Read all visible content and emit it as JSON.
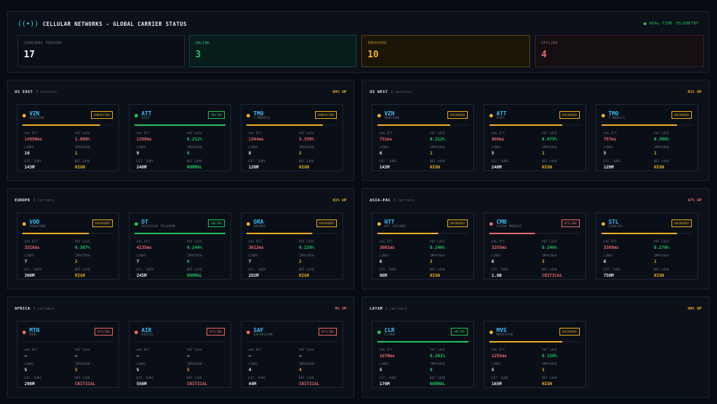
{
  "header": {
    "title": "CELLULAR NETWORKS - GLOBAL CARRIER STATUS",
    "title_icon": "antenna-icon",
    "live_label": "REAL-TIME TELEMETRY",
    "stats": [
      {
        "label": "CARRIERS TRACKED",
        "value": "17",
        "kind": "neutral"
      },
      {
        "label": "ONLINE",
        "value": "3",
        "kind": "online"
      },
      {
        "label": "IMPAIRED",
        "value": "10",
        "kind": "impaired"
      },
      {
        "label": "OFFLINE",
        "value": "4",
        "kind": "offline"
      }
    ]
  },
  "colors": {
    "online": "#22c55e",
    "degraded": "#f5b021",
    "congested": "#f5b021",
    "offline": "#f06a6a"
  },
  "labels": {
    "avg_rtt": "AVG RTT",
    "pkt_loss": "PKT LOSS",
    "links": "LINKS",
    "impaired": "IMPAIRED",
    "est_subs": "EST. SUBS",
    "net_load": "NET LOAD"
  },
  "regions": [
    {
      "name": "US EAST",
      "count": "3 carriers",
      "up": "89% UP",
      "up_color": "amber",
      "carriers": [
        {
          "code": "VZN",
          "full": "VERIZON",
          "status": "CONGESTED",
          "state": "congested",
          "bar": 0.85,
          "rtt": "14990ms",
          "rtt_c": "red",
          "loss": "1.080%",
          "loss_c": "red",
          "links": "10",
          "impaired": "1",
          "imp_c": "amber",
          "subs": "143M",
          "load": "HIGH",
          "load_c": "amber"
        },
        {
          "code": "ATT",
          "full": "AT&T",
          "status": "ONLINE",
          "state": "online",
          "bar": 1.0,
          "rtt": "1398ms",
          "rtt_c": "red",
          "loss": "0.212%",
          "loss_c": "green",
          "links": "9",
          "impaired": "0",
          "imp_c": "green",
          "subs": "240M",
          "load": "NORMAL",
          "load_c": "green"
        },
        {
          "code": "TMO",
          "full": "T-MOBILE",
          "status": "CONGESTED",
          "state": "congested",
          "bar": 0.84,
          "rtt": "1344ms",
          "rtt_c": "red",
          "loss": "3.358%",
          "loss_c": "red",
          "links": "8",
          "impaired": "2",
          "imp_c": "amber",
          "subs": "120M",
          "load": "HIGH",
          "load_c": "amber"
        }
      ]
    },
    {
      "name": "US WEST",
      "count": "3 carriers",
      "up": "81% UP",
      "up_color": "amber",
      "carriers": [
        {
          "code": "VZN",
          "full": "VERIZON",
          "status": "DEGRADED",
          "state": "degraded",
          "bar": 0.8,
          "rtt": "731ms",
          "rtt_c": "red",
          "loss": "0.212%",
          "loss_c": "green",
          "links": "6",
          "impaired": "1",
          "imp_c": "amber",
          "subs": "143M",
          "load": "HIGH",
          "load_c": "amber"
        },
        {
          "code": "ATT",
          "full": "AT&T",
          "status": "DEGRADED",
          "state": "degraded",
          "bar": 0.8,
          "rtt": "868ms",
          "rtt_c": "red",
          "loss": "0.075%",
          "loss_c": "green",
          "links": "5",
          "impaired": "1",
          "imp_c": "amber",
          "subs": "240M",
          "load": "HIGH",
          "load_c": "amber"
        },
        {
          "code": "TMO",
          "full": "T-MOBILE",
          "status": "DEGRADED",
          "state": "degraded",
          "bar": 0.83,
          "rtt": "797ms",
          "rtt_c": "red",
          "loss": "0.306%",
          "loss_c": "green",
          "links": "5",
          "impaired": "1",
          "imp_c": "amber",
          "subs": "120M",
          "load": "HIGH",
          "load_c": "amber"
        }
      ]
    },
    {
      "name": "EUROPE",
      "count": "3 carriers",
      "up": "81% UP",
      "up_color": "amber",
      "carriers": [
        {
          "code": "VOD",
          "full": "VODAFONE",
          "status": "DEGRADED",
          "state": "degraded",
          "bar": 0.73,
          "rtt": "3316ms",
          "rtt_c": "red",
          "loss": "0.307%",
          "loss_c": "green",
          "links": "7",
          "impaired": "2",
          "imp_c": "amber",
          "subs": "300M",
          "load": "HIGH",
          "load_c": "amber"
        },
        {
          "code": "DT",
          "full": "DEUTSCHE TELEKOM",
          "status": "ONLINE",
          "state": "online",
          "bar": 1.0,
          "rtt": "4135ms",
          "rtt_c": "red",
          "loss": "0.244%",
          "loss_c": "green",
          "links": "7",
          "impaired": "0",
          "imp_c": "green",
          "subs": "245M",
          "load": "NORMAL",
          "load_c": "green"
        },
        {
          "code": "ORA",
          "full": "ORANGE",
          "status": "DEGRADED",
          "state": "degraded",
          "bar": 0.72,
          "rtt": "3612ms",
          "rtt_c": "red",
          "loss": "0.220%",
          "loss_c": "green",
          "links": "7",
          "impaired": "2",
          "imp_c": "amber",
          "subs": "292M",
          "load": "HIGH",
          "load_c": "amber"
        }
      ]
    },
    {
      "name": "ASIA-PAC",
      "count": "3 carriers",
      "up": "67% UP",
      "up_color": "red",
      "carriers": [
        {
          "code": "NTT",
          "full": "NTT DOCOMO",
          "status": "DEGRADED",
          "state": "degraded",
          "bar": 0.67,
          "rtt": "3081ms",
          "rtt_c": "red",
          "loss": "0.246%",
          "loss_c": "green",
          "links": "6",
          "impaired": "2",
          "imp_c": "amber",
          "subs": "96M",
          "load": "HIGH",
          "load_c": "amber"
        },
        {
          "code": "CMB",
          "full": "CHINA MOBILE",
          "status": "OFFLINE",
          "state": "offline",
          "bar": 0.5,
          "rtt": "3255ms",
          "rtt_c": "red",
          "loss": "0.246%",
          "loss_c": "green",
          "links": "6",
          "impaired": "3",
          "imp_c": "amber",
          "subs": "1.0B",
          "load": "CRITICAL",
          "load_c": "red"
        },
        {
          "code": "STL",
          "full": "SINGTEL",
          "status": "DEGRADED",
          "state": "degraded",
          "bar": 0.83,
          "rtt": "3389ms",
          "rtt_c": "red",
          "loss": "0.270%",
          "loss_c": "green",
          "links": "6",
          "impaired": "1",
          "imp_c": "amber",
          "subs": "750M",
          "load": "HIGH",
          "load_c": "amber"
        }
      ]
    },
    {
      "name": "AFRICA",
      "count": "3 carriers",
      "up": "0% UP",
      "up_color": "red",
      "carriers": [
        {
          "code": "MTN",
          "full": "MTN",
          "status": "OFFLINE",
          "state": "offline",
          "bar": 0.0,
          "rtt": "—",
          "rtt_c": "white",
          "loss": "—",
          "loss_c": "white",
          "links": "5",
          "impaired": "5",
          "imp_c": "amber",
          "subs": "290M",
          "load": "CRITICAL",
          "load_c": "red"
        },
        {
          "code": "AIR",
          "full": "AIRTEL",
          "status": "OFFLINE",
          "state": "offline",
          "bar": 0.0,
          "rtt": "—",
          "rtt_c": "white",
          "loss": "—",
          "loss_c": "white",
          "links": "5",
          "impaired": "5",
          "imp_c": "amber",
          "subs": "550M",
          "load": "CRITICAL",
          "load_c": "red"
        },
        {
          "code": "SAF",
          "full": "SAFARICOM",
          "status": "OFFLINE",
          "state": "offline",
          "bar": 0.0,
          "rtt": "—",
          "rtt_c": "white",
          "loss": "—",
          "loss_c": "white",
          "links": "4",
          "impaired": "4",
          "imp_c": "amber",
          "subs": "44M",
          "load": "CRITICAL",
          "load_c": "red"
        }
      ]
    },
    {
      "name": "LATAM",
      "count": "2 carriers",
      "up": "90% UP",
      "up_color": "amber",
      "carriers": [
        {
          "code": "CLR",
          "full": "CLARO",
          "status": "ONLINE",
          "state": "online",
          "bar": 1.0,
          "rtt": "1670ms",
          "rtt_c": "red",
          "loss": "0.201%",
          "loss_c": "green",
          "links": "5",
          "impaired": "0",
          "imp_c": "green",
          "subs": "170M",
          "load": "NORMAL",
          "load_c": "green"
        },
        {
          "code": "MVS",
          "full": "MOVISTAR",
          "status": "DEGRADED",
          "state": "degraded",
          "bar": 0.8,
          "rtt": "1293ms",
          "rtt_c": "red",
          "loss": "0.158%",
          "loss_c": "green",
          "links": "5",
          "impaired": "1",
          "imp_c": "amber",
          "subs": "165M",
          "load": "HIGH",
          "load_c": "amber"
        }
      ]
    }
  ]
}
